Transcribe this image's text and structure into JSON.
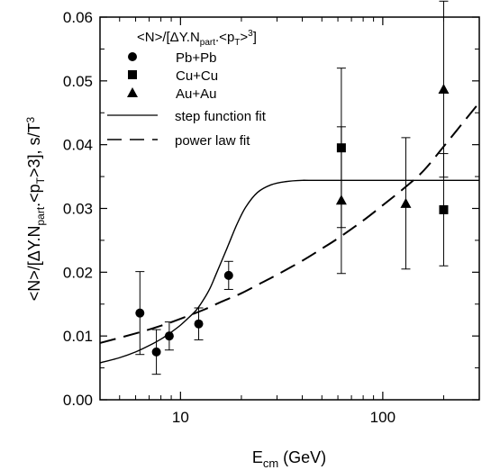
{
  "chart_data": {
    "type": "scatter",
    "xlabel": {
      "main": "E",
      "sub": "cm",
      "rest": " (GeV)"
    },
    "ylabel": "<N>/[ΔY.N part.<pT>3], s/T3",
    "ylabel_parts": {
      "a": "<N>/[ΔY.N",
      "b": "part",
      "c": ".<p",
      "d": "T",
      "e": ">3], s/T",
      "f": "3"
    },
    "x_scale": "log",
    "xlim": [
      4,
      300
    ],
    "ylim": [
      0.0,
      0.06
    ],
    "x_ticks": [
      {
        "value": 10,
        "label": "10"
      },
      {
        "value": 100,
        "label": "100"
      }
    ],
    "y_ticks": [
      {
        "value": 0.0,
        "label": "0.00"
      },
      {
        "value": 0.01,
        "label": "0.01"
      },
      {
        "value": 0.02,
        "label": "0.02"
      },
      {
        "value": 0.03,
        "label": "0.03"
      },
      {
        "value": 0.04,
        "label": "0.04"
      },
      {
        "value": 0.05,
        "label": "0.05"
      },
      {
        "value": 0.06,
        "label": "0.06"
      }
    ],
    "legend": {
      "placement": "top-left",
      "title_parts": {
        "a": "<N>/[ΔY.N",
        "b": "part",
        "c": ".<p",
        "d": "T",
        "e": ">",
        "f": "3",
        "g": "]"
      },
      "entries": [
        {
          "label": "Pb+Pb",
          "marker": "circle"
        },
        {
          "label": "Cu+Cu",
          "marker": "square"
        },
        {
          "label": "Au+Au",
          "marker": "triangle"
        },
        {
          "label": "step function fit",
          "line": "solid"
        },
        {
          "label": "power law fit",
          "line": "dashed"
        }
      ]
    },
    "series": [
      {
        "name": "Pb+Pb",
        "marker": "circle",
        "points": [
          {
            "x": 6.3,
            "y": 0.0136,
            "err": 0.0065
          },
          {
            "x": 7.6,
            "y": 0.0075,
            "err": 0.0035
          },
          {
            "x": 8.8,
            "y": 0.01,
            "err": 0.0022
          },
          {
            "x": 12.3,
            "y": 0.0119,
            "err": 0.0025
          },
          {
            "x": 17.3,
            "y": 0.0195,
            "err": 0.0022
          }
        ]
      },
      {
        "name": "Cu+Cu",
        "marker": "square",
        "points": [
          {
            "x": 62.4,
            "y": 0.0395,
            "err": 0.0125
          },
          {
            "x": 200,
            "y": 0.0298,
            "err": 0.0088
          }
        ]
      },
      {
        "name": "Au+Au",
        "marker": "triangle",
        "points": [
          {
            "x": 62.4,
            "y": 0.0313,
            "err": 0.0115
          },
          {
            "x": 130,
            "y": 0.0308,
            "err": 0.0103
          },
          {
            "x": 200,
            "y": 0.0487,
            "err": 0.0138
          }
        ]
      }
    ],
    "fits": [
      {
        "name": "step function fit",
        "style": "solid",
        "points": [
          [
            4,
            0.0058
          ],
          [
            5,
            0.0066
          ],
          [
            6,
            0.0075
          ],
          [
            7,
            0.0085
          ],
          [
            8,
            0.0095
          ],
          [
            9,
            0.0106
          ],
          [
            10,
            0.0117
          ],
          [
            11,
            0.0129
          ],
          [
            12,
            0.0141
          ],
          [
            13,
            0.0157
          ],
          [
            14,
            0.0175
          ],
          [
            15,
            0.0197
          ],
          [
            17,
            0.0238
          ],
          [
            19,
            0.0275
          ],
          [
            21,
            0.0302
          ],
          [
            24,
            0.0325
          ],
          [
            28,
            0.0337
          ],
          [
            33,
            0.0342
          ],
          [
            40,
            0.0344
          ],
          [
            50,
            0.0344
          ],
          [
            300,
            0.0344
          ]
        ]
      },
      {
        "name": "power law fit",
        "style": "dashed",
        "points": [
          [
            4,
            0.0089
          ],
          [
            6,
            0.0104
          ],
          [
            8,
            0.0116
          ],
          [
            10,
            0.0127
          ],
          [
            13,
            0.0141
          ],
          [
            16,
            0.0154
          ],
          [
            20,
            0.0167
          ],
          [
            25,
            0.0183
          ],
          [
            30,
            0.0196
          ],
          [
            40,
            0.0218
          ],
          [
            50,
            0.0237
          ],
          [
            60,
            0.0253
          ],
          [
            80,
            0.0281
          ],
          [
            100,
            0.0305
          ],
          [
            130,
            0.0334
          ],
          [
            160,
            0.036
          ],
          [
            200,
            0.0397
          ],
          [
            250,
            0.0435
          ],
          [
            300,
            0.0466
          ]
        ]
      }
    ]
  }
}
